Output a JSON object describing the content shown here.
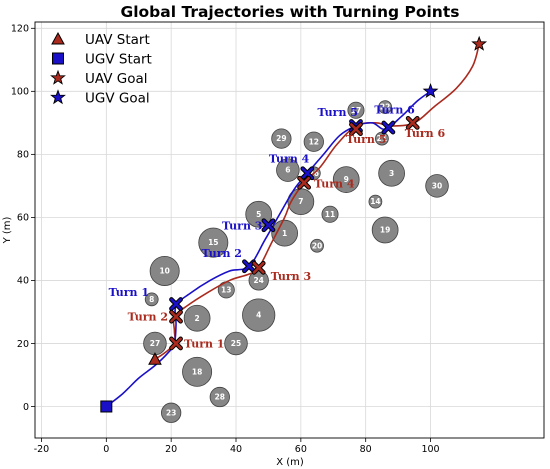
{
  "chart_data": {
    "type": "scatter",
    "title": "Global Trajectories with Turning Points",
    "xlabel": "X (m)",
    "ylabel": "Y (m)",
    "xlim": [
      -22,
      135
    ],
    "ylim": [
      -10,
      122
    ],
    "xticks": [
      -20,
      0,
      20,
      40,
      60,
      80,
      100
    ],
    "yticks": [
      0,
      20,
      40,
      60,
      80,
      100,
      120
    ],
    "grid": true,
    "legend_position": "top-left",
    "colors": {
      "uav": "#aa2a1e",
      "ugv": "#1a10c8",
      "obstacle_fill": "#808080",
      "obstacle_edge": "#404040",
      "grid": "#d8d8d8"
    },
    "legend": [
      {
        "label": "UAV Start",
        "marker": "triangle",
        "color": "#aa2a1e"
      },
      {
        "label": "UGV Start",
        "marker": "square",
        "color": "#1a10c8"
      },
      {
        "label": "UAV Goal",
        "marker": "star",
        "color": "#aa2a1e"
      },
      {
        "label": "UGV Goal",
        "marker": "star",
        "color": "#1a10c8"
      }
    ],
    "obstacles": [
      {
        "id": "2",
        "x": 28,
        "y": 28,
        "r": 4
      },
      {
        "id": "3",
        "x": 88,
        "y": 74,
        "r": 4
      },
      {
        "id": "4",
        "x": 47,
        "y": 29,
        "r": 5
      },
      {
        "id": "5",
        "x": 47,
        "y": 61,
        "r": 4
      },
      {
        "id": "6",
        "x": 56,
        "y": 75,
        "r": 3.5
      },
      {
        "id": "7",
        "x": 60,
        "y": 65,
        "r": 4
      },
      {
        "id": "9",
        "x": 74,
        "y": 72,
        "r": 4
      },
      {
        "id": "10",
        "x": 18,
        "y": 43,
        "r": 4.5
      },
      {
        "id": "11",
        "x": 69,
        "y": 61,
        "r": 2.5
      },
      {
        "id": "12",
        "x": 64,
        "y": 84,
        "r": 3
      },
      {
        "id": "13",
        "x": 37,
        "y": 37,
        "r": 2.5
      },
      {
        "id": "14",
        "x": 83,
        "y": 65,
        "r": 2
      },
      {
        "id": "15",
        "x": 33,
        "y": 52,
        "r": 4.5
      },
      {
        "id": "17",
        "x": 77,
        "y": 94,
        "r": 2.5
      },
      {
        "id": "18",
        "x": 28,
        "y": 11,
        "r": 4.5
      },
      {
        "id": "19",
        "x": 86,
        "y": 56,
        "r": 4
      },
      {
        "id": "20",
        "x": 65,
        "y": 51,
        "r": 2
      },
      {
        "id": "21",
        "x": 85,
        "y": 85,
        "r": 2
      },
      {
        "id": "22",
        "x": 86,
        "y": 95,
        "r": 2
      },
      {
        "id": "23",
        "x": 20,
        "y": -2,
        "r": 3
      },
      {
        "id": "24",
        "x": 47,
        "y": 40,
        "r": 3
      },
      {
        "id": "25",
        "x": 40,
        "y": 20,
        "r": 3.5
      },
      {
        "id": "26",
        "x": 64,
        "y": 74,
        "r": 2
      },
      {
        "id": "27",
        "x": 15,
        "y": 20,
        "r": 3.5
      },
      {
        "id": "28",
        "x": 35,
        "y": 3,
        "r": 3
      },
      {
        "id": "29",
        "x": 54,
        "y": 85,
        "r": 3
      },
      {
        "id": "30",
        "x": 102,
        "y": 70,
        "r": 3.5
      },
      {
        "id": "1",
        "x": 55,
        "y": 55,
        "r": 4
      },
      {
        "id": "8",
        "x": 14,
        "y": 34,
        "r": 2
      }
    ],
    "series": [
      {
        "name": "UAV",
        "start": {
          "x": 15,
          "y": 15
        },
        "goal": {
          "x": 115,
          "y": 115
        },
        "path": [
          [
            15,
            15
          ],
          [
            18,
            17
          ],
          [
            21,
            20
          ],
          [
            21,
            24
          ],
          [
            21,
            28.5
          ],
          [
            25,
            32
          ],
          [
            31,
            36
          ],
          [
            38,
            40
          ],
          [
            44,
            42
          ],
          [
            47,
            44
          ],
          [
            51,
            52
          ],
          [
            55,
            60
          ],
          [
            57,
            65
          ],
          [
            61,
            71
          ],
          [
            66,
            76
          ],
          [
            71,
            83
          ],
          [
            77,
            89
          ],
          [
            83,
            90
          ],
          [
            88,
            89
          ],
          [
            95,
            90
          ],
          [
            101,
            95
          ],
          [
            108,
            101
          ],
          [
            113,
            108
          ],
          [
            115,
            115
          ]
        ]
      },
      {
        "name": "UGV",
        "start": {
          "x": 0,
          "y": 0
        },
        "goal": {
          "x": 100,
          "y": 100
        },
        "path": [
          [
            0,
            0
          ],
          [
            5,
            4
          ],
          [
            10,
            9
          ],
          [
            15,
            13
          ],
          [
            19,
            17
          ],
          [
            21,
            20
          ],
          [
            21.5,
            26
          ],
          [
            21.5,
            32
          ],
          [
            26,
            36
          ],
          [
            32,
            40
          ],
          [
            38,
            43
          ],
          [
            44,
            44.5
          ],
          [
            49,
            53
          ],
          [
            54,
            62
          ],
          [
            58,
            69
          ],
          [
            62,
            74
          ],
          [
            67,
            80
          ],
          [
            72,
            86
          ],
          [
            77,
            89
          ],
          [
            82,
            90
          ],
          [
            86,
            88
          ],
          [
            91,
            92
          ],
          [
            96,
            97
          ],
          [
            100,
            100
          ]
        ]
      }
    ],
    "turns": [
      {
        "series": "UGV",
        "label": "Turn 1",
        "x": 21.5,
        "y": 32.5
      },
      {
        "series": "UAV",
        "label": "Turn 1",
        "x": 21.5,
        "y": 20
      },
      {
        "series": "UAV",
        "label": "Turn 2",
        "x": 21.5,
        "y": 28.5
      },
      {
        "series": "UGV",
        "label": "Turn 2",
        "x": 44,
        "y": 44.5
      },
      {
        "series": "UAV",
        "label": "Turn 3",
        "x": 47,
        "y": 44
      },
      {
        "series": "UGV",
        "label": "Turn 3",
        "x": 50,
        "y": 57.5
      },
      {
        "series": "UGV",
        "label": "Turn 4",
        "x": 62,
        "y": 74
      },
      {
        "series": "UAV",
        "label": "Turn 4",
        "x": 61,
        "y": 71
      },
      {
        "series": "UGV",
        "label": "Turn 5",
        "x": 77,
        "y": 89
      },
      {
        "series": "UAV",
        "label": "Turn 5",
        "x": 77,
        "y": 88
      },
      {
        "series": "UGV",
        "label": "Turn 6",
        "x": 87,
        "y": 88.5
      },
      {
        "series": "UAV",
        "label": "Turn 6",
        "x": 94.5,
        "y": 90
      }
    ]
  }
}
